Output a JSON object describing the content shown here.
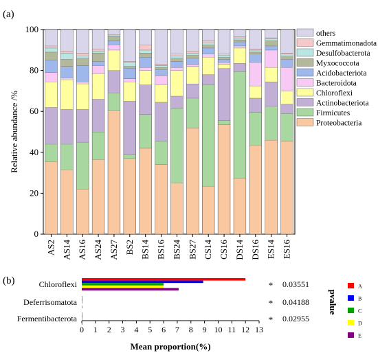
{
  "panel_a_label": "(a)",
  "panel_b_label": "(b)",
  "chart_data": [
    {
      "type": "stacked-bar",
      "ylabel": "Relative abundance /%",
      "ylim": [
        0,
        100
      ],
      "yticks": [
        0,
        20,
        40,
        60,
        80,
        100
      ],
      "categories": [
        "AS2",
        "AS14",
        "AS16",
        "AS24",
        "AS27",
        "BS2",
        "BS14",
        "BS16",
        "BS24",
        "BS27",
        "CS14",
        "CS16",
        "DS14",
        "DS16",
        "ES14",
        "ES16"
      ],
      "legend_position": "right",
      "series": [
        {
          "name": "Proteobacteria",
          "color": "#F9C8A0",
          "values": [
            35.5,
            31.5,
            22,
            36.5,
            60.5,
            37,
            42,
            34,
            25,
            52,
            23.5,
            53.5,
            27.5,
            43.5,
            46,
            45.5
          ]
        },
        {
          "name": "Firmicutes",
          "color": "#A9D7A0",
          "values": [
            8.5,
            12.5,
            23,
            13.5,
            8.5,
            2,
            16.5,
            11.5,
            36.5,
            14.5,
            49.5,
            2,
            52,
            16,
            16.5,
            13.5
          ]
        },
        {
          "name": "Actinobacteriota",
          "color": "#C2AFD6",
          "values": [
            18,
            17,
            16,
            16,
            11,
            26,
            14.5,
            19,
            6,
            7,
            5,
            25.5,
            4,
            7,
            12,
            4.5
          ]
        },
        {
          "name": "Chloroflexi",
          "color": "#FFFFA0",
          "values": [
            12.5,
            14.5,
            12.5,
            12.5,
            10,
            9.5,
            7,
            8.5,
            12.5,
            8.5,
            8.5,
            2,
            7.5,
            6,
            7,
            6.5
          ]
        },
        {
          "name": "Bacteroidota",
          "color": "#F9C9F5",
          "values": [
            4.5,
            1,
            1,
            4,
            2.5,
            1.5,
            1.5,
            4.5,
            1.5,
            1,
            1.5,
            1,
            1,
            11.5,
            8.5,
            11.5
          ]
        },
        {
          "name": "Acidobacteriota",
          "color": "#9FB8EC",
          "values": [
            6,
            5.5,
            8,
            2,
            2,
            5,
            5,
            3,
            3,
            3,
            3,
            1.5,
            2,
            4,
            2,
            4
          ]
        },
        {
          "name": "Myxococcota",
          "color": "#B3B89A",
          "values": [
            4,
            3.5,
            3.5,
            4,
            2,
            1,
            2,
            1,
            1.5,
            1.5,
            1.5,
            1,
            1,
            1,
            2.5,
            1.5
          ]
        },
        {
          "name": "Desulfobacterota",
          "color": "#B8E6E3",
          "values": [
            2,
            3,
            1,
            1,
            0.5,
            2,
            1.5,
            1,
            1,
            1,
            1,
            1,
            1,
            1,
            1,
            1
          ]
        },
        {
          "name": "Gemmatimonadota",
          "color": "#F5C9C9",
          "values": [
            1,
            1,
            1.5,
            1,
            0.5,
            0.5,
            2.5,
            0.5,
            1,
            1,
            1,
            0.5,
            0.5,
            0.5,
            0.5,
            0.5
          ]
        },
        {
          "name": "others",
          "color": "#D9D5EA",
          "values": [
            8,
            10.5,
            11.5,
            9.5,
            2.5,
            15.5,
            7.5,
            17,
            12,
            10.5,
            5.5,
            12,
            3.5,
            9.5,
            4,
            11.5
          ]
        }
      ],
      "separator_color": "#4D4D4D"
    },
    {
      "type": "bar",
      "orientation": "horizontal",
      "xlabel": "Mean proportion(%)",
      "xlim": [
        0,
        13
      ],
      "xticks": [
        0,
        1,
        2,
        3,
        4,
        5,
        6,
        7,
        8,
        9,
        10,
        11,
        12,
        13
      ],
      "categories": [
        "Chloroflexi",
        "Deferrisomatota",
        "Fermentibacterota"
      ],
      "groups": [
        {
          "name": "A",
          "color": "#FF0000",
          "values": [
            12.0,
            0.01,
            0.0
          ]
        },
        {
          "name": "B",
          "color": "#0000FF",
          "values": [
            8.9,
            0.01,
            0.0
          ]
        },
        {
          "name": "C",
          "color": "#00A000",
          "values": [
            6.0,
            0.01,
            0.0
          ]
        },
        {
          "name": "D",
          "color": "#FFFF00",
          "values": [
            6.0,
            0.01,
            0.0
          ]
        },
        {
          "name": "E",
          "color": "#800080",
          "values": [
            7.1,
            0.01,
            0.0
          ]
        }
      ],
      "significance": [
        "*",
        "*",
        "*"
      ],
      "pvalues": [
        "0.03551",
        "0.04188",
        "0.02955"
      ],
      "pvalue_label": "pvalue",
      "legend_position": "right"
    }
  ]
}
